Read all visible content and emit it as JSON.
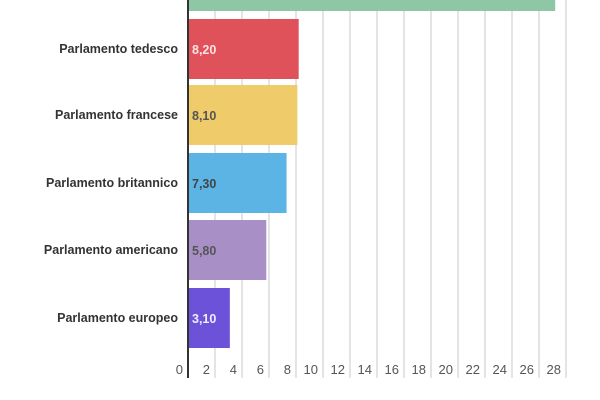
{
  "chart_data": {
    "type": "bar",
    "orientation": "horizontal",
    "categories": [
      "",
      "Parlamento tedesco",
      "Parlamento francese",
      "Parlamento britannico",
      "Parlamento americano",
      "Parlamento europeo"
    ],
    "values": [
      27.2,
      8.2,
      8.1,
      7.3,
      5.8,
      3.1
    ],
    "value_labels": [
      "",
      "8,20",
      "8,10",
      "7,30",
      "5,80",
      "3,10"
    ],
    "colors": [
      "#8dc7a5",
      "#e0525a",
      "#f0cb69",
      "#5cb4e5",
      "#a890c7",
      "#6c52d9"
    ],
    "label_colors": [
      "#ffffff",
      "#fbe3e4",
      "#555555",
      "#444444",
      "#555555",
      "#eeeeff"
    ],
    "xlim": [
      0,
      28
    ],
    "xticks": [
      "0",
      "2",
      "4",
      "6",
      "8",
      "10",
      "12",
      "14",
      "16",
      "18",
      "20",
      "22",
      "24",
      "26",
      "28"
    ],
    "grid": true,
    "title": "",
    "xlabel": "",
    "ylabel": ""
  }
}
